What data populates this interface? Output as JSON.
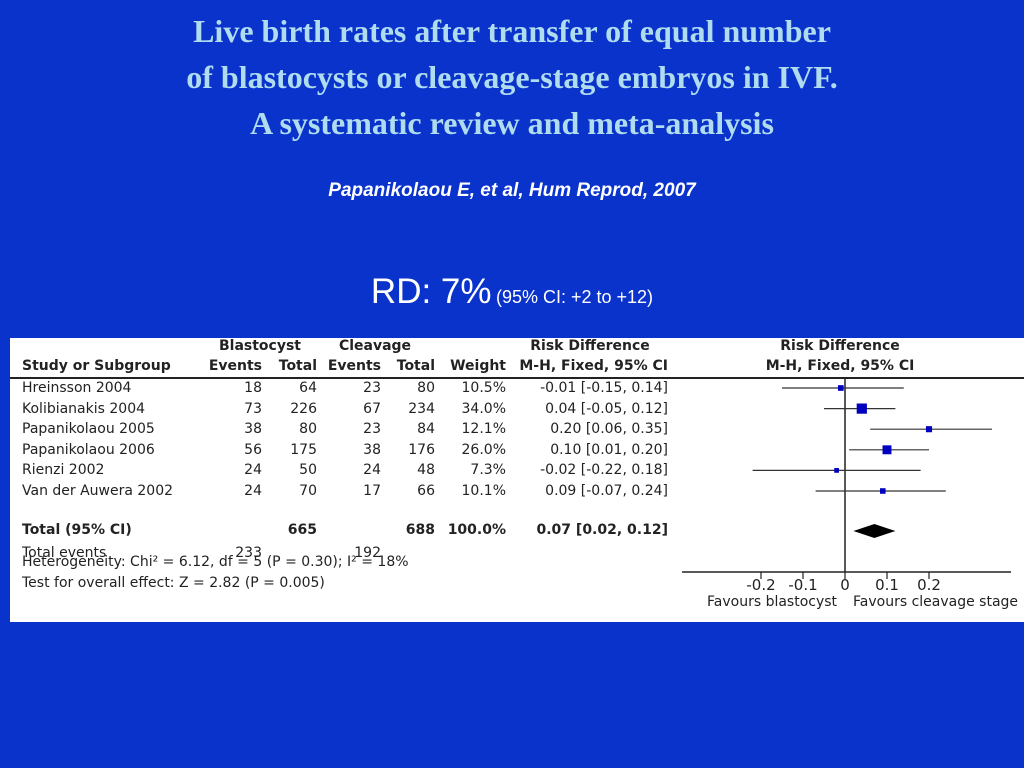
{
  "title": {
    "line1": "Live birth rates after transfer of equal number",
    "line2": "of blastocysts or cleavage-stage embryos in IVF.",
    "line3": "A systematic review and meta-analysis"
  },
  "citation": "Papanikolaou E,  et al, Hum Reprod, 2007",
  "rd": {
    "main": "RD: 7%",
    "ci": "(95% CI: +2 to +12)"
  },
  "colors": {
    "background": "#0a33cc",
    "title": "#b0dcf0",
    "marker": "#0000c0"
  },
  "table": {
    "group_headers": {
      "blastocyst": "Blastocyst",
      "cleavage": "Cleavage",
      "rd": "Risk Difference"
    },
    "columns": [
      "Study or Subgroup",
      "Events",
      "Total",
      "Events",
      "Total",
      "Weight",
      "M-H, Fixed, 95% CI"
    ],
    "rows": [
      [
        "Hreinsson 2004",
        "18",
        "64",
        "23",
        "80",
        "10.5%",
        "-0.01 [-0.15, 0.14]"
      ],
      [
        "Kolibianakis 2004",
        "73",
        "226",
        "67",
        "234",
        "34.0%",
        "0.04 [-0.05, 0.12]"
      ],
      [
        "Papanikolaou 2005",
        "38",
        "80",
        "23",
        "84",
        "12.1%",
        "0.20 [0.06, 0.35]"
      ],
      [
        "Papanikolaou 2006",
        "56",
        "175",
        "38",
        "176",
        "26.0%",
        "0.10 [0.01, 0.20]"
      ],
      [
        "Rienzi 2002",
        "24",
        "50",
        "24",
        "48",
        "7.3%",
        "-0.02 [-0.22, 0.18]"
      ],
      [
        "Van der Auwera 2002",
        "24",
        "70",
        "17",
        "66",
        "10.1%",
        "0.09 [-0.07, 0.24]"
      ]
    ],
    "total": [
      "Total (95% CI)",
      "",
      "665",
      "",
      "688",
      "100.0%",
      "0.07 [0.02, 0.12]"
    ],
    "total_events": [
      "Total events",
      "233",
      "",
      "192",
      "",
      "",
      ""
    ],
    "heterogeneity": "Heterogeneity: Chi² = 6.12, df = 5 (P = 0.30); I² = 18%",
    "overall_effect": "Test for overall effect: Z = 2.82 (P = 0.005)"
  },
  "chart_data": {
    "type": "forest",
    "title": "Risk Difference",
    "subtitle": "M-H, Fixed, 95% CI",
    "xlim": [
      -0.25,
      0.4
    ],
    "xticks": [
      "-0.2",
      "-0.1",
      "0",
      "0.1",
      "0.2"
    ],
    "xtick_values": [
      -0.2,
      -0.1,
      0,
      0.1,
      0.2
    ],
    "xlabel_left": "Favours blastocyst",
    "xlabel_right": "Favours cleavage stage",
    "studies": [
      {
        "study": "Hreinsson 2004",
        "estimate": -0.01,
        "lower": -0.15,
        "upper": 0.14,
        "weight": 10.5
      },
      {
        "study": "Kolibianakis 2004",
        "estimate": 0.04,
        "lower": -0.05,
        "upper": 0.12,
        "weight": 34.0
      },
      {
        "study": "Papanikolaou 2005",
        "estimate": 0.2,
        "lower": 0.06,
        "upper": 0.35,
        "weight": 12.1
      },
      {
        "study": "Papanikolaou 2006",
        "estimate": 0.1,
        "lower": 0.01,
        "upper": 0.2,
        "weight": 26.0
      },
      {
        "study": "Rienzi 2002",
        "estimate": -0.02,
        "lower": -0.22,
        "upper": 0.18,
        "weight": 7.3
      },
      {
        "study": "Van der Auwera 2002",
        "estimate": 0.09,
        "lower": -0.07,
        "upper": 0.24,
        "weight": 10.1
      }
    ],
    "pooled": {
      "estimate": 0.07,
      "lower": 0.02,
      "upper": 0.12
    }
  }
}
